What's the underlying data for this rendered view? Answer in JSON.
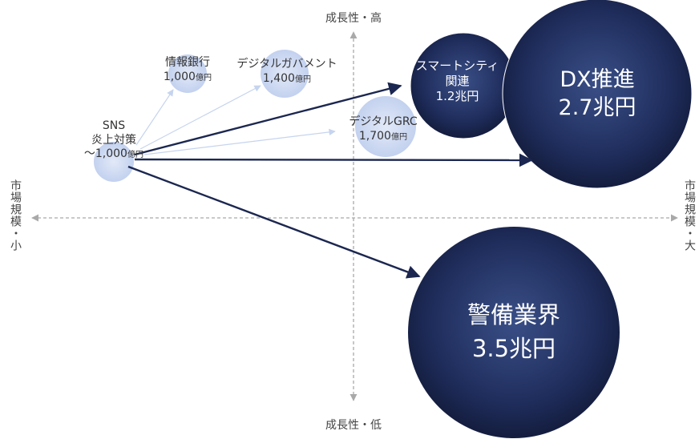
{
  "axes": {
    "top": "成長性・高",
    "bottom": "成長性・低",
    "left": "市場規模・小",
    "right": "市場規模・大"
  },
  "bubbles": {
    "sns": {
      "line1": "SNS",
      "line2": "炎上対策",
      "line3_prefix": "～1,000",
      "line3_unit": "億円"
    },
    "bank": {
      "line1": "情報銀行",
      "line2_value": "1,000",
      "line2_unit": "億円"
    },
    "digigov": {
      "line1": "デジタルガバメント",
      "line2_value": "1,400",
      "line2_unit": "億円"
    },
    "grc": {
      "line1": "デジタルGRC",
      "line2_value": "1,700",
      "line2_unit": "億円"
    },
    "smartcity": {
      "line1": "スマートシティ",
      "line2": "関連",
      "line3": "1.2兆円"
    },
    "dx": {
      "line1": "DX推進",
      "line2": "2.7兆円"
    },
    "security": {
      "line1": "警備業界",
      "line2": "3.5兆円"
    }
  },
  "colors": {
    "light_bubble": "#c5d3ef",
    "dark_bubble": "#1b2750",
    "arrow_dark": "#1b2750",
    "arrow_light": "#c6d4ee",
    "axis": "#a9a9a9"
  }
}
